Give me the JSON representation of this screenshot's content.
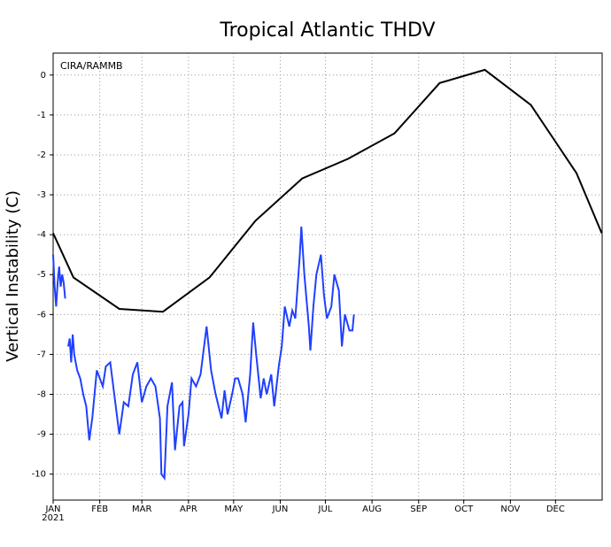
{
  "chart_data": {
    "type": "line",
    "title": "Tropical Atlantic THDV",
    "y_label": "Vertical Instability (C)",
    "annotation": "CIRA/RAMMB",
    "x_axis_year": "2021",
    "xlim": [
      0,
      365
    ],
    "xticks": [
      {
        "value": 0,
        "label": "JAN"
      },
      {
        "value": 31,
        "label": "FEB"
      },
      {
        "value": 59,
        "label": "MAR"
      },
      {
        "value": 90,
        "label": "APR"
      },
      {
        "value": 120,
        "label": "MAY"
      },
      {
        "value": 151,
        "label": "JUN"
      },
      {
        "value": 181,
        "label": "JUL"
      },
      {
        "value": 212,
        "label": "AUG"
      },
      {
        "value": 243,
        "label": "SEP"
      },
      {
        "value": 273,
        "label": "OCT"
      },
      {
        "value": 304,
        "label": "NOV"
      },
      {
        "value": 334,
        "label": "DEC"
      }
    ],
    "ylim": [
      -10.65,
      0.55
    ],
    "yticks": [
      -10,
      -9,
      -8,
      -7,
      -6,
      -5,
      -4,
      -3,
      -2,
      -1,
      0
    ],
    "grid": true,
    "series": [
      {
        "color": "#000000",
        "x": [
          0,
          13.5,
          44,
          73,
          104,
          134.5,
          165.6,
          196,
          227,
          257,
          287,
          317.6,
          348,
          364.7
        ],
        "values": [
          -3.96,
          -5.07,
          -5.86,
          -5.93,
          -5.07,
          -3.65,
          -2.59,
          -2.1,
          -1.46,
          -0.2,
          0.13,
          -0.75,
          -2.46,
          -3.96
        ]
      },
      {
        "color": "#2040ff",
        "x": [
          0,
          1,
          2,
          3,
          4,
          5,
          6,
          7,
          8,
          9,
          10,
          11,
          12,
          13,
          14,
          16,
          18,
          20,
          22,
          24,
          26,
          29,
          33,
          35,
          38,
          41,
          44,
          47,
          50,
          53,
          56,
          59,
          62,
          65,
          68,
          71,
          72,
          74,
          76,
          79,
          81,
          84,
          86,
          87,
          90,
          92,
          95,
          98,
          100,
          102,
          105,
          108,
          112,
          114,
          116,
          119,
          121,
          123,
          126,
          128,
          131,
          133,
          135,
          138,
          140,
          142,
          145,
          147,
          150,
          152,
          154,
          157,
          159,
          161,
          164,
          165,
          167,
          170,
          171,
          173,
          175,
          178,
          180,
          182,
          185,
          187,
          190,
          192,
          194,
          197,
          199,
          200
        ],
        "values": [
          -4.5,
          -5.3,
          -5.8,
          -5.2,
          -4.8,
          -5.3,
          -5.0,
          -5.2,
          -5.6,
          null,
          -6.8,
          -6.6,
          -7.2,
          -6.5,
          -7.0,
          -7.4,
          -7.6,
          -8.0,
          -8.3,
          -9.15,
          -8.6,
          -7.4,
          -7.8,
          -7.3,
          -7.2,
          -8.1,
          -9.0,
          -8.2,
          -8.3,
          -7.5,
          -7.2,
          -8.2,
          -7.8,
          -7.6,
          -7.8,
          -8.6,
          -10.0,
          -10.1,
          -8.3,
          -7.7,
          -9.4,
          -8.3,
          -8.2,
          -9.3,
          -8.5,
          -7.6,
          -7.8,
          -7.5,
          -6.9,
          -6.3,
          -7.4,
          -8.0,
          -8.6,
          -7.9,
          -8.5,
          -8.0,
          -7.6,
          -7.6,
          -8.0,
          -8.7,
          -7.5,
          -6.2,
          -7.0,
          -8.1,
          -7.6,
          -8.0,
          -7.5,
          -8.3,
          -7.3,
          -6.8,
          -5.8,
          -6.3,
          -5.9,
          -6.1,
          -4.5,
          -3.8,
          -5.0,
          -6.3,
          -6.9,
          -5.8,
          -5.0,
          -4.5,
          -5.5,
          -6.1,
          -5.8,
          -5.0,
          -5.4,
          -6.8,
          -6.0,
          -6.4,
          -6.4,
          -6.0
        ]
      }
    ]
  }
}
